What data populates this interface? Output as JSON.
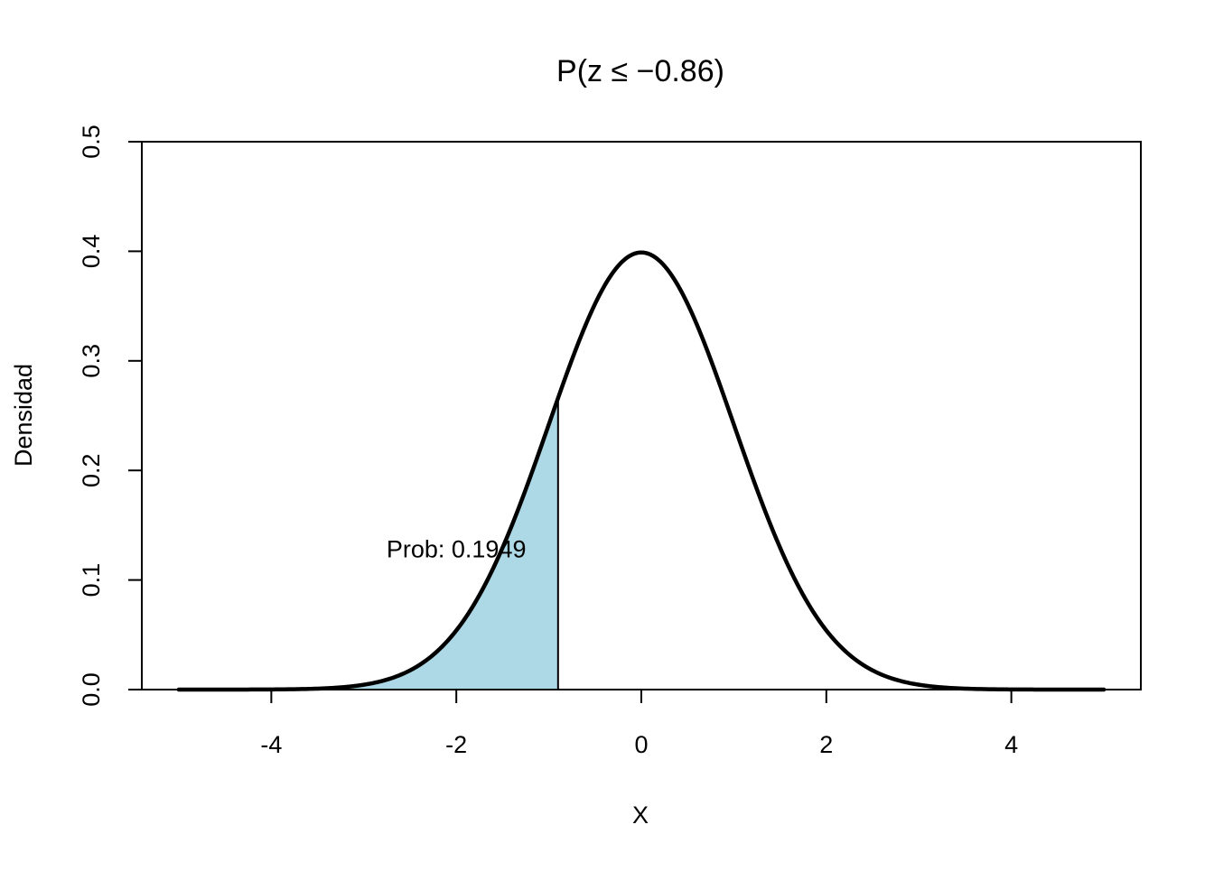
{
  "chart_data": {
    "type": "area",
    "title": "P(z ≤ −0.86)",
    "xlabel": "X",
    "ylabel": "Densidad",
    "xlim": [
      -5.4,
      5.4
    ],
    "ylim": [
      0,
      0.5
    ],
    "x_ticks": [
      -4,
      -2,
      0,
      2,
      4
    ],
    "x_tick_labels": [
      "-4",
      "-2",
      "0",
      "2",
      "4"
    ],
    "y_ticks": [
      0.0,
      0.1,
      0.2,
      0.3,
      0.4,
      0.5
    ],
    "y_tick_labels": [
      "0.0",
      "0.1",
      "0.2",
      "0.3",
      "0.4",
      "0.5"
    ],
    "curve": {
      "distribution": "standard normal density",
      "mean": 0,
      "sd": 1,
      "x_range": [
        -5,
        5
      ],
      "color": "#000000"
    },
    "shaded_region": {
      "x_from": -5,
      "x_to": -0.9,
      "fill_color": "#add8e6"
    },
    "annotation": {
      "text": "Prob: 0.1949",
      "x": -2.0,
      "y": 0.128
    },
    "grid": false,
    "box": true
  }
}
